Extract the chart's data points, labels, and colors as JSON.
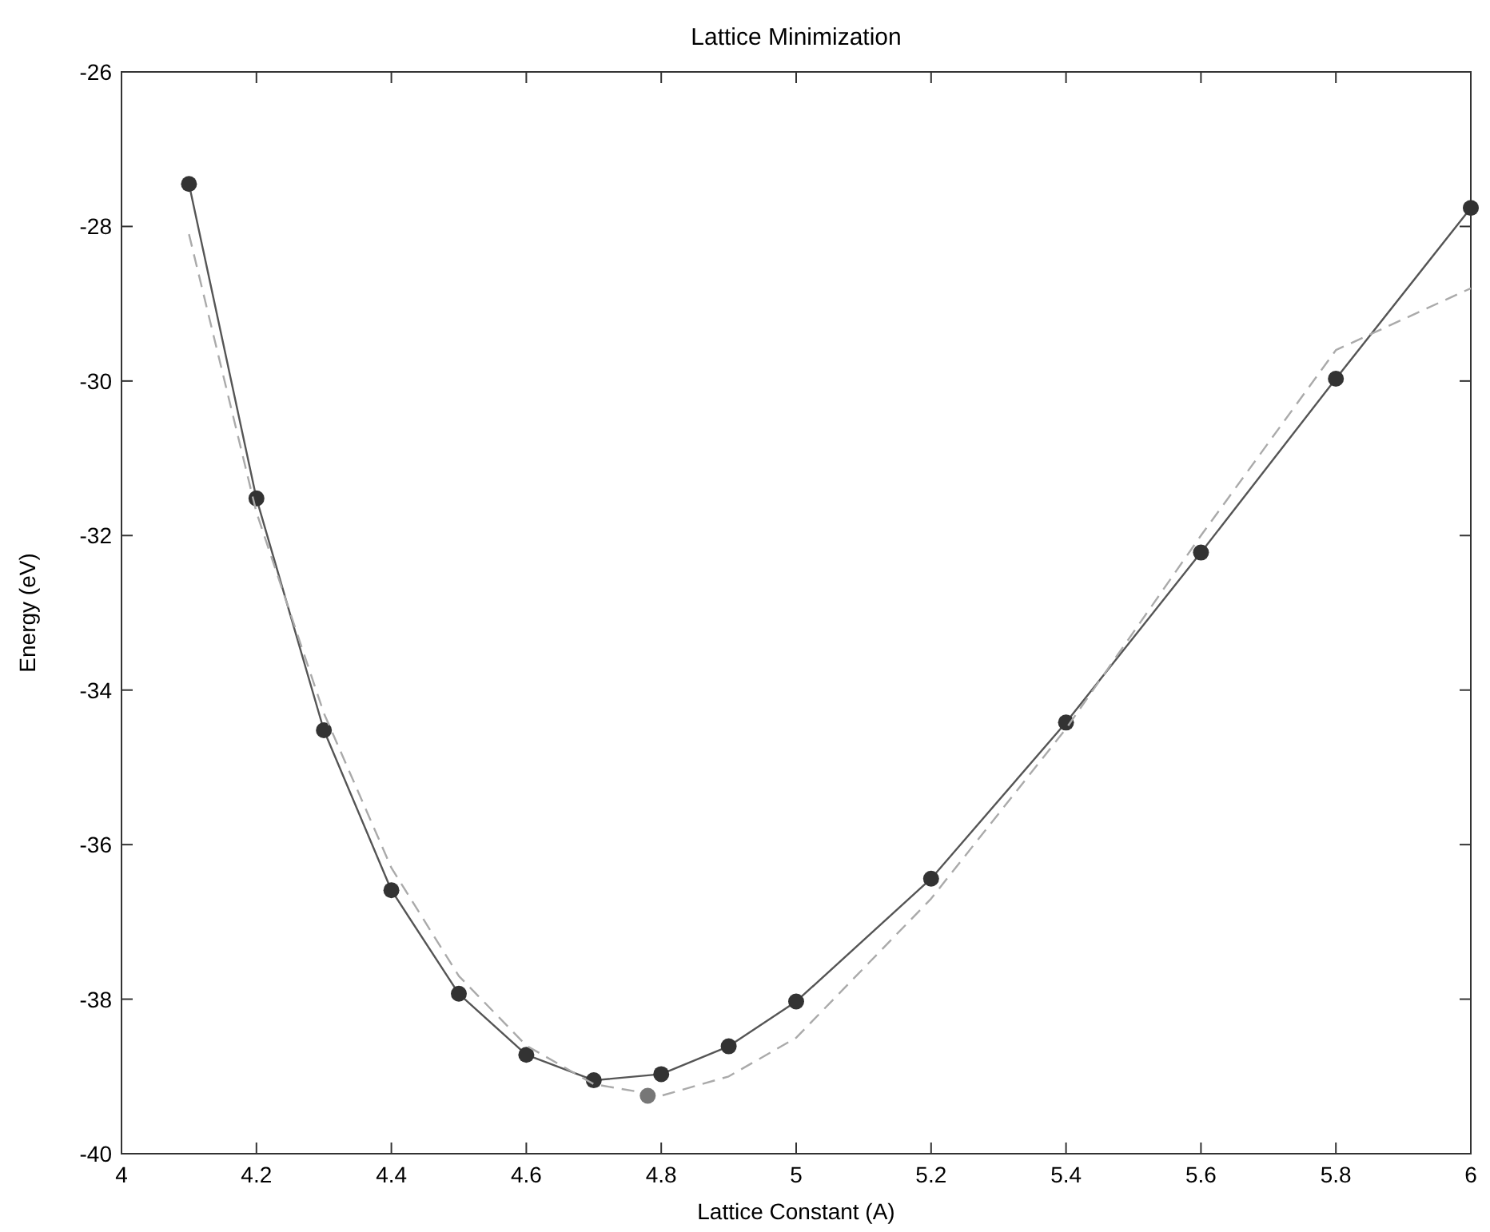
{
  "chart_data": {
    "type": "line",
    "title": "Lattice Minimization",
    "xlabel": "Lattice Constant (A)",
    "ylabel": "Energy (eV)",
    "xlim": [
      4,
      6
    ],
    "xticks": [
      4,
      4.2,
      4.4,
      4.6,
      4.8,
      5,
      5.2,
      5.4,
      5.6,
      5.8,
      6
    ],
    "ylim": [
      -40,
      -26
    ],
    "yticks": [
      -40,
      -38,
      -36,
      -34,
      -32,
      -30,
      -28,
      -26
    ],
    "grid": false,
    "series": [
      {
        "type": "line",
        "color": "#555555",
        "marker": "circle",
        "line_style": "solid",
        "x": [
          4.1,
          4.2,
          4.3,
          4.4,
          4.5,
          4.6,
          4.7,
          4.8,
          4.9,
          5.0,
          5.2,
          5.4,
          5.6,
          5.8,
          6.0
        ],
        "values": [
          -27.45,
          -31.52,
          -34.52,
          -36.59,
          -37.93,
          -38.72,
          -39.05,
          -38.97,
          -38.61,
          -38.03,
          -36.44,
          -34.42,
          -32.22,
          -29.97,
          -27.76
        ]
      },
      {
        "type": "line",
        "color": "#aaaaaa",
        "marker": "none",
        "line_style": "dashed",
        "x": [
          4.1,
          4.2,
          4.3,
          4.4,
          4.5,
          4.6,
          4.7,
          4.8,
          4.9,
          5.0,
          5.2,
          5.4,
          5.6,
          5.8,
          6.0
        ],
        "values": [
          -28.1,
          -31.7,
          -34.3,
          -36.3,
          -37.7,
          -38.6,
          -39.1,
          -39.25,
          -39.0,
          -38.5,
          -36.7,
          -34.5,
          -32.0,
          -29.6,
          -28.8
        ]
      },
      {
        "type": "scatter",
        "color": "#777777",
        "marker": "circle",
        "x": [
          4.78
        ],
        "values": [
          -39.25
        ]
      }
    ]
  }
}
